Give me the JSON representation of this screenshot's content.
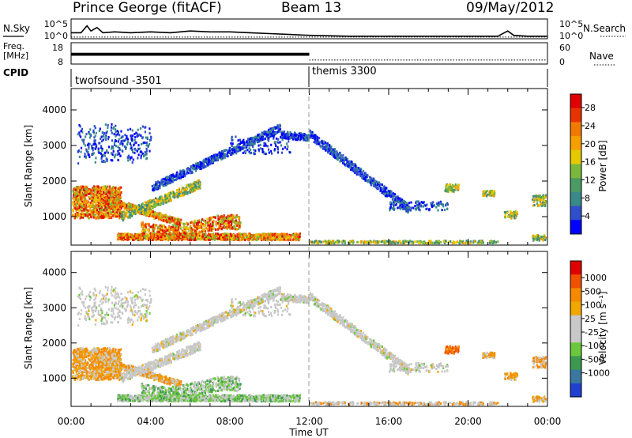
{
  "header": {
    "station": "Prince George (fitACF)",
    "beam": "Beam 13",
    "date": "09/May/2012"
  },
  "labels": {
    "nsky": "N.Sky",
    "nsearch": "N.Search",
    "freq_line1": "Freq.",
    "freq_line2": "[MHz]",
    "nave": "Nave",
    "cpid": "CPID",
    "time_axis": "Time UT",
    "range_axis": "Slant Range [km]",
    "power_axis": "Power [dB]",
    "velocity_axis": "Velocity [m s⁻¹]"
  },
  "colors": {
    "power": [
      "#0000ff",
      "#2f4fcc",
      "#3a8a8a",
      "#4c9a64",
      "#7ab83c",
      "#e6c800",
      "#f5a000",
      "#f07a00",
      "#e83200",
      "#e00000"
    ],
    "velocity": [
      "#e00000",
      "#f05000",
      "#f58a00",
      "#f0a800",
      "#c8c8c8",
      "#c8c8c8",
      "#6cc83c",
      "#3c9a50",
      "#3a78a0",
      "#2040d0"
    ]
  },
  "chart_data": [
    {
      "type": "line",
      "name": "noise",
      "y_ticks_left": [
        "10^5",
        "10^0"
      ],
      "y_ticks_right": [
        "10^5",
        "10^0"
      ],
      "series": [
        {
          "name": "N.Sky",
          "style": "solid",
          "x": [
            0,
            0.5,
            0.8,
            1.0,
            1.3,
            1.6,
            2.2,
            3.0,
            4.0,
            5.0,
            6.0,
            7.0,
            8.0,
            9.0,
            10.0,
            11.0,
            12.0,
            14.0,
            16.0,
            18.0,
            20.0,
            21.5,
            22.0,
            22.3,
            23.0,
            24.0
          ],
          "y": [
            0.3,
            0.3,
            0.7,
            0.4,
            0.6,
            0.3,
            0.35,
            0.3,
            0.35,
            0.3,
            0.4,
            0.35,
            0.35,
            0.3,
            0.25,
            0.2,
            0.15,
            0.1,
            0.1,
            0.1,
            0.1,
            0.1,
            0.4,
            0.15,
            0.1,
            0.1
          ]
        },
        {
          "name": "N.Search",
          "style": "dotted",
          "x": [
            0,
            24
          ],
          "y": [
            0.05,
            0.05
          ]
        }
      ]
    },
    {
      "type": "line",
      "name": "frequency",
      "y_ticks_left": [
        "18",
        "8"
      ],
      "y_ticks_right": [
        "60",
        "0"
      ],
      "series": [
        {
          "name": "Freq",
          "style": "block",
          "x": [
            0,
            12
          ],
          "y": [
            12.5,
            12.5
          ]
        },
        {
          "name": "Nave",
          "style": "dotted",
          "x": [
            12,
            24
          ],
          "y": [
            10,
            10
          ]
        }
      ]
    },
    {
      "type": "table",
      "name": "cpid",
      "segments": [
        {
          "label": "twofsound -3501",
          "start": 0,
          "end": 12
        },
        {
          "label": "themis 3300",
          "start": 12,
          "end": 24
        }
      ]
    },
    {
      "type": "heatmap",
      "name": "power",
      "x_range": [
        0,
        24
      ],
      "y_range": [
        200,
        4600
      ],
      "x_ticks": [
        "00:00",
        "04:00",
        "08:00",
        "12:00",
        "16:00",
        "20:00",
        "00:00"
      ],
      "y_ticks": [
        1000,
        2000,
        3000,
        4000
      ],
      "colorbar_ticks": [
        4,
        8,
        12,
        16,
        20,
        24,
        28
      ],
      "colorbar_range": [
        0,
        31
      ]
    },
    {
      "type": "heatmap",
      "name": "velocity",
      "x_range": [
        0,
        24
      ],
      "y_range": [
        200,
        4600
      ],
      "x_ticks": [
        "00:00",
        "04:00",
        "08:00",
        "12:00",
        "16:00",
        "20:00",
        "00:00"
      ],
      "y_ticks": [
        1000,
        2000,
        3000,
        4000
      ],
      "colorbar_ticks": [
        "1000",
        "500",
        "100",
        "25",
        "-25",
        "-100",
        "-500",
        "-1000"
      ]
    }
  ]
}
